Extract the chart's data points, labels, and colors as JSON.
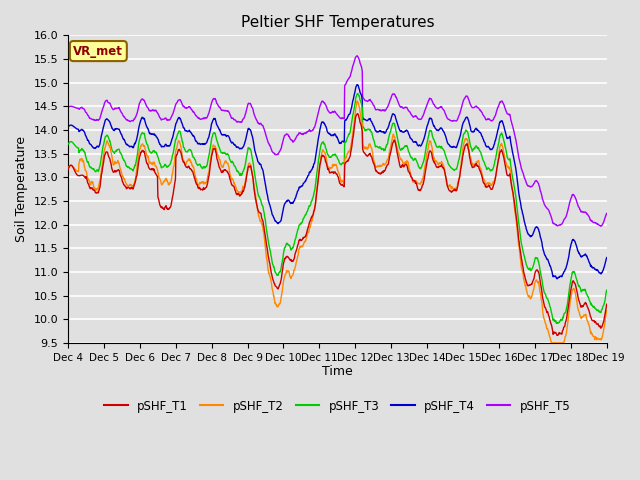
{
  "title": "Peltier SHF Temperatures",
  "xlabel": "Time",
  "ylabel": "Soil Temperature",
  "ylim": [
    9.5,
    16.0
  ],
  "yticks": [
    9.5,
    10.0,
    10.5,
    11.0,
    11.5,
    12.0,
    12.5,
    13.0,
    13.5,
    14.0,
    14.5,
    15.0,
    15.5,
    16.0
  ],
  "xtick_labels": [
    "Dec 4",
    "Dec 5",
    "Dec 6",
    "Dec 7",
    "Dec 8",
    "Dec 9",
    "Dec 10",
    "Dec 11",
    "Dec 12",
    "Dec 13",
    "Dec 14",
    "Dec 15",
    "Dec 16",
    "Dec 17",
    "Dec 18",
    "Dec 19"
  ],
  "colors": {
    "pSHF_T1": "#cc0000",
    "pSHF_T2": "#ff8800",
    "pSHF_T3": "#00cc00",
    "pSHF_T4": "#0000cc",
    "pSHF_T5": "#aa00ff"
  },
  "legend_labels": [
    "pSHF_T1",
    "pSHF_T2",
    "pSHF_T3",
    "pSHF_T4",
    "pSHF_T5"
  ],
  "annotation_text": "VR_met",
  "background_color": "#e0e0e0",
  "grid_color": "#ffffff",
  "linewidth": 1.0,
  "n_points": 1440
}
